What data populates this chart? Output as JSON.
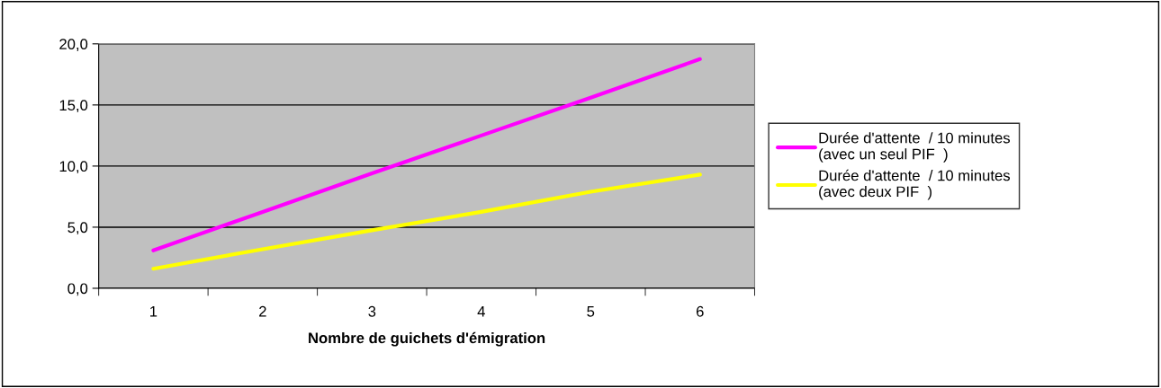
{
  "chart_data": {
    "type": "line",
    "xlabel": "Nombre de guichets d'émigration",
    "categories": [
      "1",
      "2",
      "3",
      "4",
      "5",
      "6"
    ],
    "series": [
      {
        "name": "Durée d'attente  / 10 minutes\n(avec un seul PIF  )",
        "color": "#ff00ff",
        "values": [
          3.1,
          6.25,
          9.4,
          12.5,
          15.6,
          18.75
        ]
      },
      {
        "name": "Durée d'attente  / 10 minutes\n(avec deux PIF  )",
        "color": "#ffff00",
        "values": [
          1.6,
          3.2,
          4.75,
          6.25,
          7.9,
          9.3
        ]
      }
    ],
    "ylim": [
      0,
      20
    ],
    "yticks": [
      {
        "value": 0,
        "label": "0,0"
      },
      {
        "value": 5,
        "label": "5,0"
      },
      {
        "value": 10,
        "label": "10,0"
      },
      {
        "value": 15,
        "label": "15,0"
      },
      {
        "value": 20,
        "label": "20,0"
      }
    ],
    "grid": "y",
    "legend": "right",
    "marker": "none",
    "line_style": "solid"
  }
}
